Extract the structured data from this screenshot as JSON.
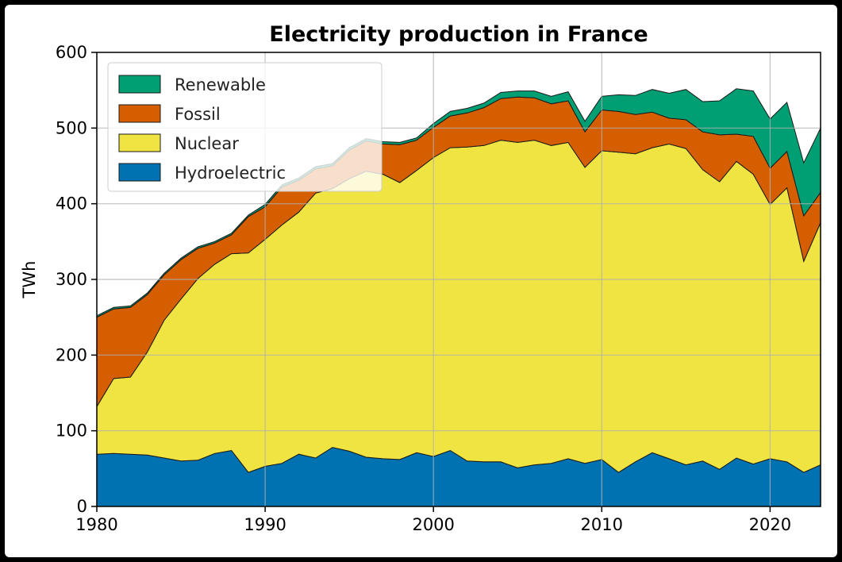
{
  "chart_data": {
    "type": "area",
    "stacked": true,
    "title": "Electricity production in France",
    "xlabel": "",
    "ylabel": "TWh",
    "xlim": [
      1980,
      2023
    ],
    "ylim": [
      0,
      600
    ],
    "xticks": [
      1980,
      1990,
      2000,
      2010,
      2020
    ],
    "yticks": [
      0,
      100,
      200,
      300,
      400,
      500,
      600
    ],
    "grid": true,
    "legend_position": "top-left",
    "x": [
      1980,
      1981,
      1982,
      1983,
      1984,
      1985,
      1986,
      1987,
      1988,
      1989,
      1990,
      1991,
      1992,
      1993,
      1994,
      1995,
      1996,
      1997,
      1998,
      1999,
      2000,
      2001,
      2002,
      2003,
      2004,
      2005,
      2006,
      2007,
      2008,
      2009,
      2010,
      2011,
      2012,
      2013,
      2014,
      2015,
      2016,
      2017,
      2018,
      2019,
      2020,
      2021,
      2022,
      2023
    ],
    "series": [
      {
        "name": "Hydroelectric",
        "color": "#0072b2",
        "values": [
          69,
          70,
          69,
          68,
          64,
          60,
          61,
          70,
          74,
          45,
          53,
          57,
          69,
          64,
          78,
          73,
          65,
          63,
          62,
          71,
          66,
          74,
          60,
          59,
          59,
          51,
          55,
          57,
          63,
          57,
          62,
          45,
          59,
          71,
          63,
          55,
          60,
          49,
          64,
          56,
          63,
          59,
          45,
          55
        ]
      },
      {
        "name": "Nuclear",
        "color": "#f0e442",
        "values": [
          63,
          99,
          102,
          136,
          182,
          214,
          240,
          250,
          260,
          290,
          300,
          315,
          320,
          350,
          342,
          360,
          378,
          376,
          366,
          373,
          395,
          400,
          415,
          418,
          425,
          430,
          429,
          420,
          418,
          391,
          408,
          423,
          407,
          403,
          416,
          418,
          385,
          380,
          392,
          383,
          336,
          362,
          279,
          320
        ]
      },
      {
        "name": "Fossil",
        "color": "#d55e00",
        "values": [
          118,
          92,
          92,
          76,
          60,
          52,
          40,
          28,
          25,
          48,
          43,
          50,
          42,
          32,
          30,
          38,
          40,
          40,
          50,
          40,
          40,
          42,
          45,
          50,
          55,
          60,
          56,
          55,
          55,
          47,
          54,
          54,
          52,
          47,
          34,
          38,
          50,
          62,
          36,
          50,
          48,
          48,
          60,
          40
        ]
      },
      {
        "name": "Renewable",
        "color": "#009e73",
        "values": [
          2,
          2,
          2,
          2,
          2,
          2,
          2,
          2,
          2,
          2,
          3,
          3,
          3,
          3,
          3,
          3,
          3,
          3,
          3,
          3,
          5,
          6,
          6,
          6,
          8,
          8,
          9,
          10,
          12,
          14,
          18,
          22,
          25,
          30,
          33,
          40,
          40,
          45,
          60,
          60,
          65,
          65,
          70,
          85
        ]
      }
    ]
  }
}
